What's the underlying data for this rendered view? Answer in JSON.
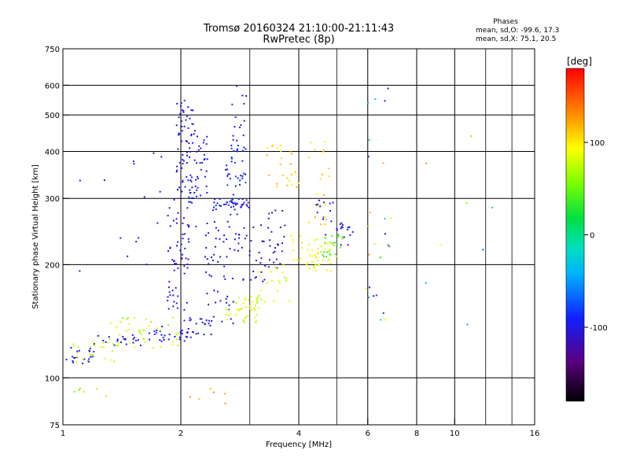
{
  "chart_data": {
    "type": "scatter",
    "title": "Tromsø 20160324 21:10:00-21:11:43",
    "subtitle": "RwPretec (8p)",
    "xlabel": "Frequency [MHz]",
    "ylabel": "Stationary phase Virtual Height [km]",
    "x_scale": "log",
    "y_scale": "log",
    "xlim": [
      1,
      16
    ],
    "ylim": [
      75,
      750
    ],
    "x_ticks": [
      1,
      2,
      4,
      6,
      8,
      10,
      16
    ],
    "y_ticks": [
      75,
      100,
      200,
      300,
      400,
      500,
      600,
      750
    ],
    "grid": true,
    "stats": {
      "header": "Phases",
      "o_line": "mean, sd,O: -99.6, 17.3",
      "x_line": "mean, sd,X:  75.1, 20.5"
    },
    "colorbar": {
      "label": "[deg]",
      "range": [
        -180,
        180
      ],
      "ticks": [
        100,
        0,
        -100
      ],
      "colormap": "rainbow-black-to-red"
    },
    "series": [
      {
        "clusters": [
          {
            "f": [
              1.02,
              1.2
            ],
            "h": [
              108,
              122
            ],
            "phase": [
              -105,
              -85
            ],
            "n": 22
          },
          {
            "f": [
              1.2,
              1.6
            ],
            "h": [
              120,
              130
            ],
            "phase": [
              -110,
              -90
            ],
            "n": 22
          },
          {
            "f": [
              1.6,
              2.2
            ],
            "h": [
              125,
              137
            ],
            "phase": [
              -108,
              -90
            ],
            "n": 28
          },
          {
            "f": [
              2.0,
              2.4
            ],
            "h": [
              130,
              145
            ],
            "phase": [
              -110,
              -92
            ],
            "n": 22
          },
          {
            "f": [
              1.85,
              2.1
            ],
            "h": [
              150,
              290
            ],
            "phase": [
              -115,
              -90
            ],
            "n": 55
          },
          {
            "f": [
              1.95,
              2.15
            ],
            "h": [
              290,
              550
            ],
            "phase": [
              -110,
              -85
            ],
            "n": 70
          },
          {
            "f": [
              2.15,
              2.35
            ],
            "h": [
              300,
              470
            ],
            "phase": [
              -110,
              -88
            ],
            "n": 30
          },
          {
            "f": [
              2.3,
              2.8
            ],
            "h": [
              138,
              280
            ],
            "phase": [
              -110,
              -90
            ],
            "n": 55
          },
          {
            "f": [
              2.4,
              3.0
            ],
            "h": [
              280,
              300
            ],
            "phase": [
              -110,
              -85
            ],
            "n": 40
          },
          {
            "f": [
              2.6,
              2.95
            ],
            "h": [
              300,
              420
            ],
            "phase": [
              -100,
              -75
            ],
            "n": 35
          },
          {
            "f": [
              2.7,
              2.95
            ],
            "h": [
              420,
              620
            ],
            "phase": [
              -105,
              -88
            ],
            "n": 14
          },
          {
            "f": [
              2.8,
              3.3
            ],
            "h": [
              180,
              260
            ],
            "phase": [
              -120,
              -100
            ],
            "n": 30
          },
          {
            "f": [
              3.3,
              3.7
            ],
            "h": [
              195,
              280
            ],
            "phase": [
              -125,
              -100
            ],
            "n": 25
          },
          {
            "f": [
              4.4,
              5.0
            ],
            "h": [
              240,
              300
            ],
            "phase": [
              -110,
              -90
            ],
            "n": 14
          },
          {
            "f": [
              5.0,
              5.5
            ],
            "h": [
              225,
              260
            ],
            "phase": [
              -115,
              -95
            ],
            "n": 16
          },
          {
            "f": [
              1.1,
              2.6
            ],
            "h": [
              190,
              400
            ],
            "phase": [
              -110,
              -85
            ],
            "n": 26
          },
          {
            "f": [
              5.9,
              6.9
            ],
            "h": [
              140,
              640
            ],
            "phase": [
              -130,
              150
            ],
            "n": 26
          },
          {
            "f": [
              8.0,
              12.5
            ],
            "h": [
              120,
              470
            ],
            "phase": [
              -110,
              140
            ],
            "n": 8
          }
        ]
      },
      {
        "clusters": [
          {
            "f": [
              1.05,
              1.4
            ],
            "h": [
              110,
              125
            ],
            "phase": [
              70,
              95
            ],
            "n": 24
          },
          {
            "f": [
              1.3,
              2.0
            ],
            "h": [
              120,
              140
            ],
            "phase": [
              70,
              90
            ],
            "n": 30
          },
          {
            "f": [
              2.6,
              3.2
            ],
            "h": [
              140,
              165
            ],
            "phase": [
              65,
              95
            ],
            "n": 40
          },
          {
            "f": [
              3.1,
              3.8
            ],
            "h": [
              150,
              200
            ],
            "phase": [
              70,
              100
            ],
            "n": 25
          },
          {
            "f": [
              3.8,
              4.6
            ],
            "h": [
              195,
              240
            ],
            "phase": [
              80,
              105
            ],
            "n": 28
          },
          {
            "f": [
              4.3,
              5.0
            ],
            "h": [
              190,
              230
            ],
            "phase": [
              70,
              95
            ],
            "n": 22
          },
          {
            "f": [
              4.6,
              5.2
            ],
            "h": [
              210,
              240
            ],
            "phase": [
              30,
              55
            ],
            "n": 24
          },
          {
            "f": [
              3.3,
              4.0
            ],
            "h": [
              320,
              420
            ],
            "phase": [
              95,
              125
            ],
            "n": 25
          },
          {
            "f": [
              4.2,
              4.8
            ],
            "h": [
              250,
              430
            ],
            "phase": [
              90,
              120
            ],
            "n": 20
          },
          {
            "f": [
              1.4,
              2.0
            ],
            "h": [
              130,
              145
            ],
            "phase": [
              55,
              85
            ],
            "n": 12
          },
          {
            "f": [
              1.05,
              1.3
            ],
            "h": [
              88,
              95
            ],
            "phase": [
              40,
              75
            ],
            "n": 6
          },
          {
            "f": [
              2.05,
              2.6
            ],
            "h": [
              84,
              98
            ],
            "phase": [
              110,
              140
            ],
            "n": 6
          }
        ]
      }
    ]
  }
}
